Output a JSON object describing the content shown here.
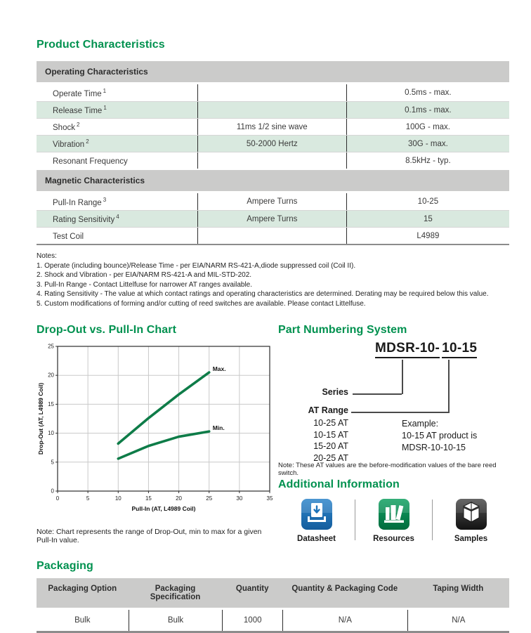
{
  "page": {
    "background": "#ffffff",
    "accent_green": "#00914f",
    "row_green": "#d9e9df",
    "bar_gray": "#cbcbca"
  },
  "product_characteristics": {
    "title": "Product Characteristics",
    "operating": {
      "section_label": "Operating Characteristics",
      "rows": [
        {
          "label": "Operate Time",
          "sup": "1",
          "condition": "",
          "value": "0.5ms - max."
        },
        {
          "label": "Release Time",
          "sup": "1",
          "condition": "",
          "value": "0.1ms - max."
        },
        {
          "label": "Shock",
          "sup": "2",
          "condition": "11ms 1/2 sine wave",
          "value": "100G - max."
        },
        {
          "label": "Vibration",
          "sup": "2",
          "condition": "50-2000 Hertz",
          "value": "30G - max."
        },
        {
          "label": "Resonant Frequency",
          "sup": "",
          "condition": "",
          "value": "8.5kHz - typ."
        }
      ]
    },
    "magnetic": {
      "section_label": "Magnetic Characteristics",
      "rows": [
        {
          "label": "Pull-In Range",
          "sup": "3",
          "condition": "Ampere Turns",
          "value": "10-25"
        },
        {
          "label": "Rating Sensitivity",
          "sup": "4",
          "condition": "Ampere Turns",
          "value": "15"
        },
        {
          "label": "Test Coil",
          "sup": "",
          "condition": "",
          "value": "L4989"
        }
      ]
    }
  },
  "notes": {
    "title": "Notes:",
    "items": [
      "1. Operate (including bounce)/Release Time - per EIA/NARM RS-421-A,diode suppressed coil (Coil II).",
      "2. Shock and Vibration - per EIA/NARM RS-421-A and MIL-STD-202.",
      "3. Pull-In Range - Contact Littelfuse for narrower AT ranges available.",
      "4. Rating Sensitivity - The value at which contact ratings and operating characteristics are determined. Derating may be required below this value.",
      "5. Custom modifications of forming and/or cutting of reed switches are available. Please contact Littelfuse."
    ]
  },
  "chart_section": {
    "heading": "Drop-Out vs. Pull-In Chart",
    "note": "Note: Chart represents the range of Drop-Out, min to max for a given Pull-In value."
  },
  "chart_data": {
    "type": "line",
    "title": "Drop-Out vs. Pull-In Chart",
    "xlabel": "Pull-In (AT, L4989 Coil)",
    "ylabel": "Drop-Out (AT, L4989 Coil)",
    "xlim": [
      0,
      35
    ],
    "ylim": [
      0,
      25
    ],
    "xstep": 5,
    "ystep": 5,
    "grid": true,
    "legend_position": "end-of-line-labels",
    "line_color": "#0e7c48",
    "series": [
      {
        "name": "Max.",
        "x": [
          10,
          15,
          20,
          25
        ],
        "y": [
          8.2,
          12.6,
          16.7,
          20.5
        ]
      },
      {
        "name": "Min.",
        "x": [
          10,
          15,
          20,
          25
        ],
        "y": [
          5.6,
          7.8,
          9.4,
          10.3
        ]
      }
    ]
  },
  "part_numbering": {
    "heading": "Part Numbering System",
    "part_number_seg1": "MDSR-10-",
    "part_number_seg2": "10-15",
    "series_label": "Series",
    "at_range_label": "AT Range",
    "at_ranges": [
      "10-25 AT",
      "10-15 AT",
      "15-20 AT",
      "20-25 AT"
    ],
    "example_lines": [
      "Example:",
      "10-15 AT product is",
      "MDSR-10-10-15"
    ],
    "note": "Note: These AT values are the before-modification values of the bare reed switch."
  },
  "additional_information": {
    "heading": "Additional Information",
    "items": [
      {
        "label": "Datasheet",
        "icon": "datasheet-download-icon",
        "color": "#1e73b9"
      },
      {
        "label": "Resources",
        "icon": "resources-books-icon",
        "color": "#00874e"
      },
      {
        "label": "Samples",
        "icon": "samples-box-icon",
        "color": "#2d2a2b"
      }
    ]
  },
  "packaging": {
    "heading": "Packaging",
    "headers": [
      "Packaging Option",
      "Packaging Specification",
      "Quantity",
      "Quantity & Packaging Code",
      "Taping Width"
    ],
    "rows": [
      [
        "Bulk",
        "Bulk",
        "1000",
        "N/A",
        "N/A"
      ]
    ]
  }
}
